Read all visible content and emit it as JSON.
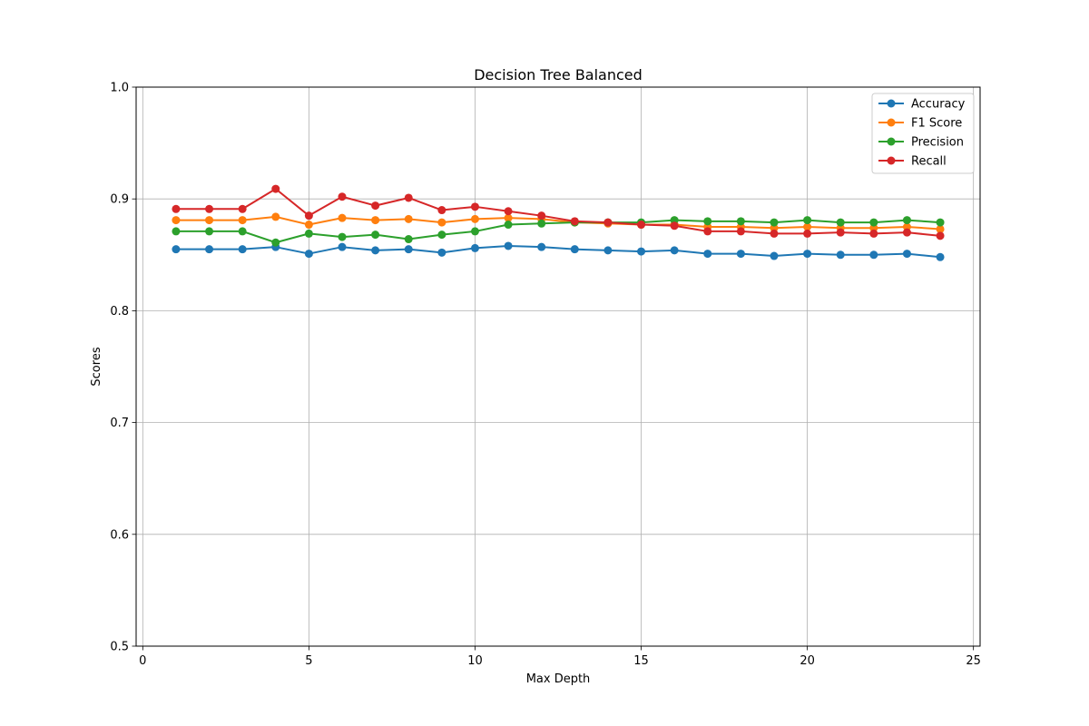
{
  "chart_data": {
    "type": "line",
    "title": "Decision Tree Balanced",
    "xlabel": "Max Depth",
    "ylabel": "Scores",
    "xlim": [
      -0.2,
      25.2
    ],
    "ylim": [
      0.5,
      1.0
    ],
    "xticks": [
      0,
      5,
      10,
      15,
      20,
      25
    ],
    "yticks": [
      0.5,
      0.6,
      0.7,
      0.8,
      0.9,
      1.0
    ],
    "xtick_labels": [
      "0",
      "5",
      "10",
      "15",
      "20",
      "25"
    ],
    "ytick_labels": [
      "0.5",
      "0.6",
      "0.7",
      "0.8",
      "0.9",
      "1.0"
    ],
    "grid": true,
    "legend_position": "top-right",
    "x": [
      1,
      2,
      3,
      4,
      5,
      6,
      7,
      8,
      9,
      10,
      11,
      12,
      13,
      14,
      15,
      16,
      17,
      18,
      19,
      20,
      21,
      22,
      23,
      24
    ],
    "series": [
      {
        "name": "Accuracy",
        "color": "#1f77b4",
        "values": [
          0.855,
          0.855,
          0.855,
          0.857,
          0.851,
          0.857,
          0.854,
          0.855,
          0.852,
          0.856,
          0.858,
          0.857,
          0.855,
          0.854,
          0.853,
          0.854,
          0.851,
          0.851,
          0.849,
          0.851,
          0.85,
          0.85,
          0.851,
          0.848
        ]
      },
      {
        "name": "F1 Score",
        "color": "#ff7f0e",
        "values": [
          0.881,
          0.881,
          0.881,
          0.884,
          0.877,
          0.883,
          0.881,
          0.882,
          0.879,
          0.882,
          0.883,
          0.882,
          0.879,
          0.878,
          0.877,
          0.877,
          0.875,
          0.875,
          0.874,
          0.875,
          0.874,
          0.874,
          0.875,
          0.873
        ]
      },
      {
        "name": "Precision",
        "color": "#2ca02c",
        "values": [
          0.871,
          0.871,
          0.871,
          0.861,
          0.869,
          0.866,
          0.868,
          0.864,
          0.868,
          0.871,
          0.877,
          0.878,
          0.879,
          0.879,
          0.879,
          0.881,
          0.88,
          0.88,
          0.879,
          0.881,
          0.879,
          0.879,
          0.881,
          0.879
        ]
      },
      {
        "name": "Recall",
        "color": "#d62728",
        "values": [
          0.891,
          0.891,
          0.891,
          0.909,
          0.885,
          0.902,
          0.894,
          0.901,
          0.89,
          0.893,
          0.889,
          0.885,
          0.88,
          0.879,
          0.877,
          0.876,
          0.871,
          0.871,
          0.869,
          0.869,
          0.87,
          0.869,
          0.87,
          0.867
        ]
      }
    ]
  }
}
